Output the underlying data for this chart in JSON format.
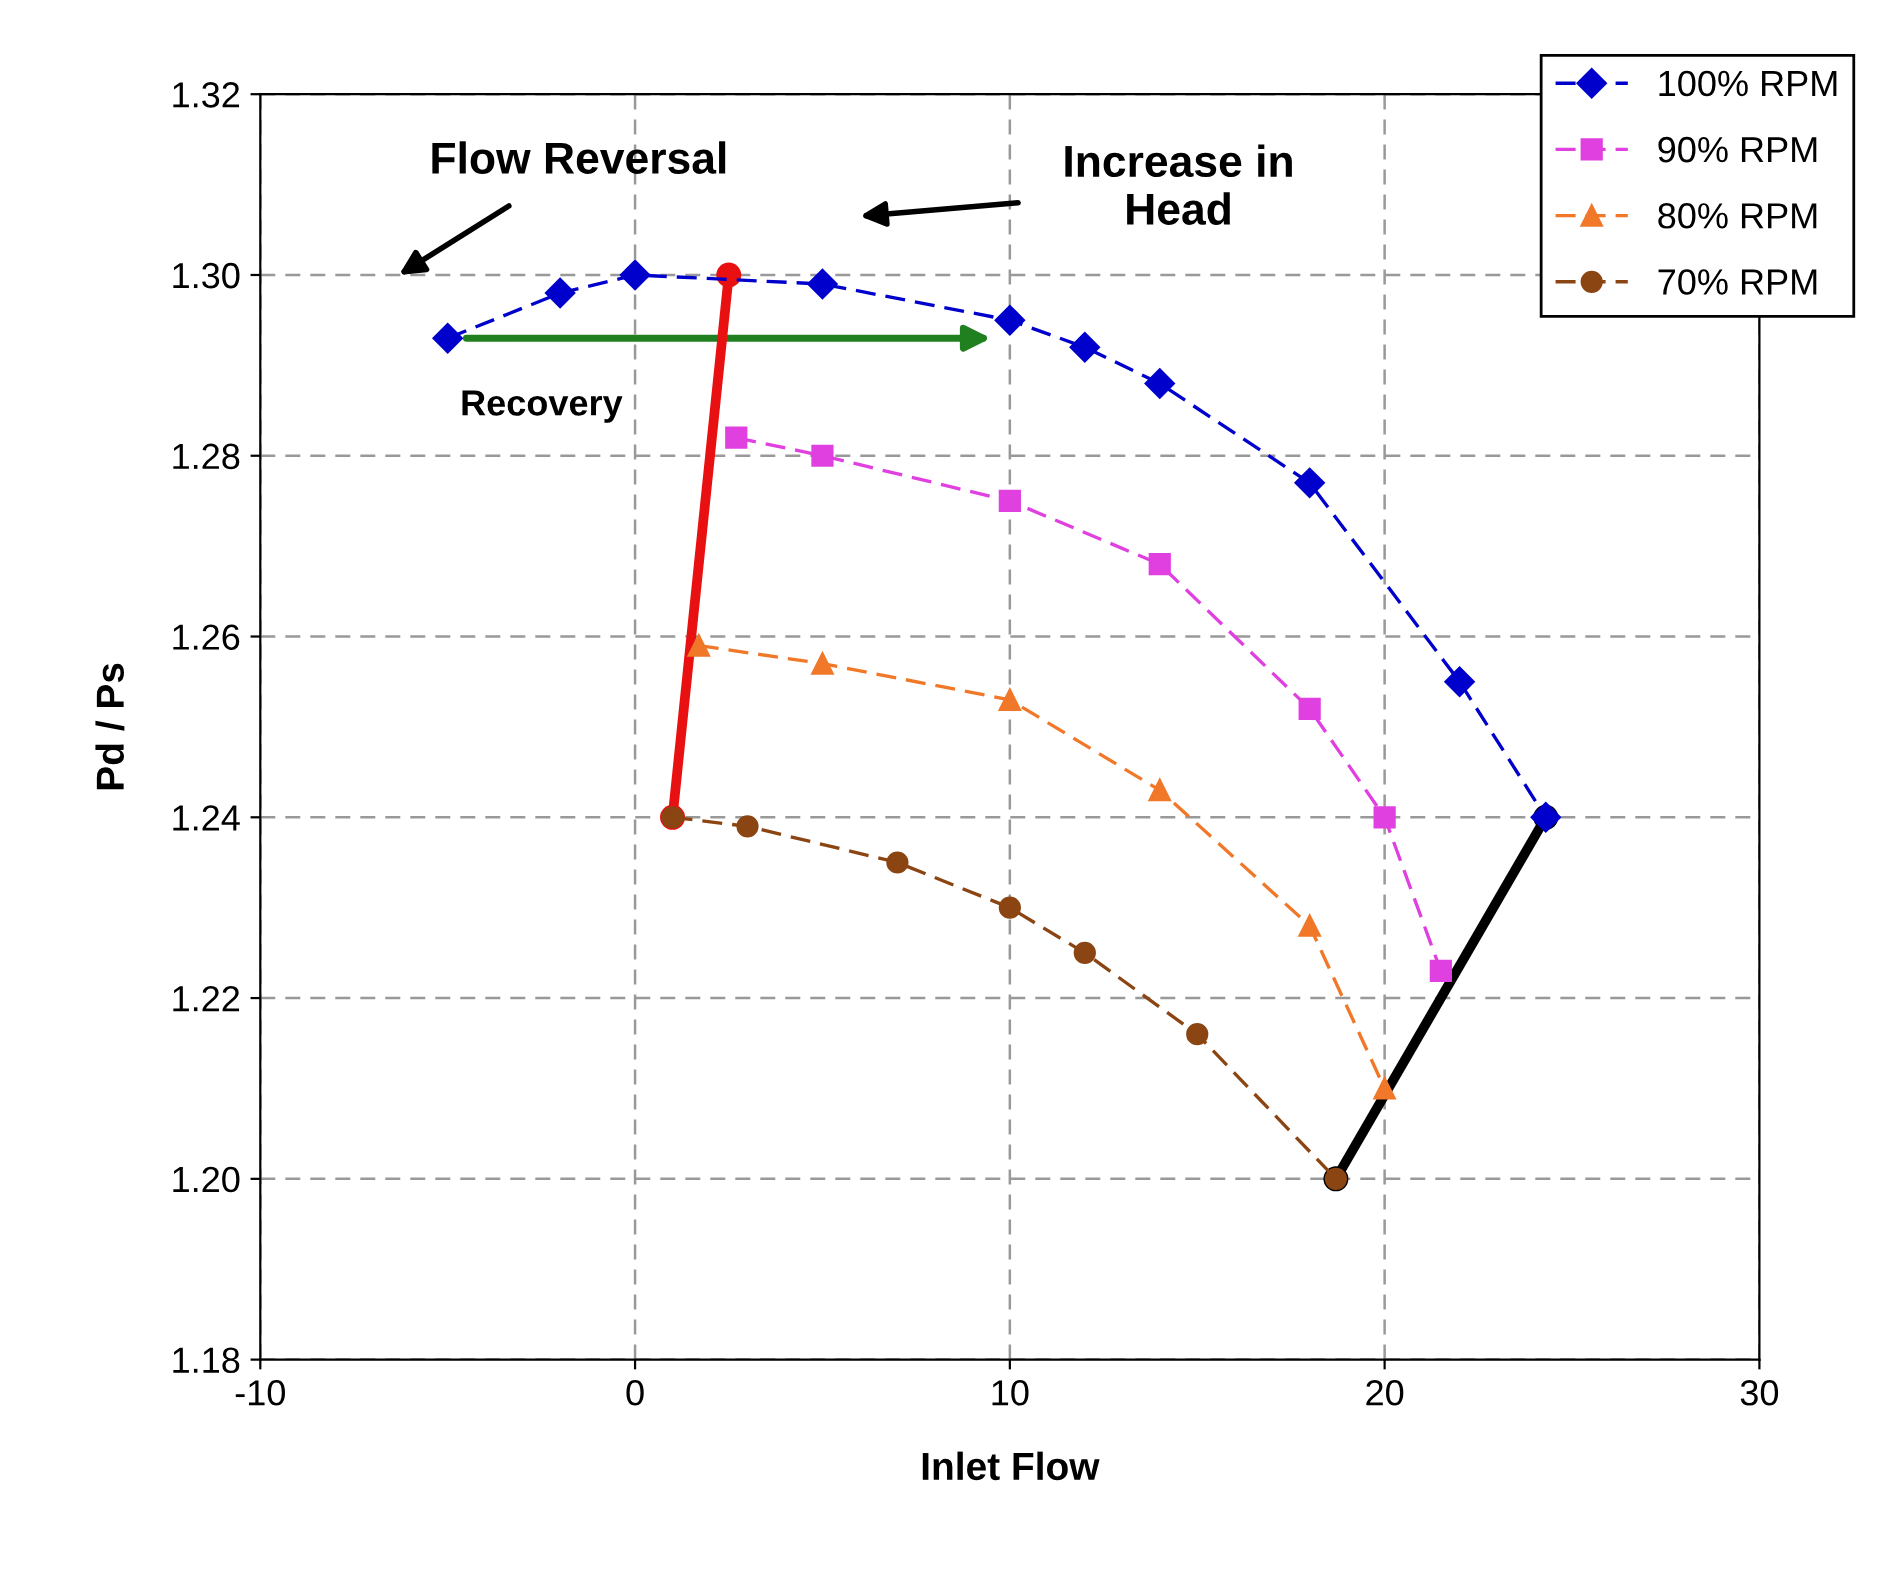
{
  "chart_data": {
    "type": "line",
    "xlabel": "Inlet Flow",
    "ylabel": "Pd / Ps",
    "xlim": [
      -10,
      30
    ],
    "ylim": [
      1.18,
      1.32
    ],
    "xticks": [
      -10,
      0,
      10,
      20,
      30
    ],
    "yticks": [
      {
        "value": 1.18,
        "label": "1.18"
      },
      {
        "value": 1.2,
        "label": "1.20"
      },
      {
        "value": 1.22,
        "label": "1.22"
      },
      {
        "value": 1.24,
        "label": "1.24"
      },
      {
        "value": 1.26,
        "label": "1.26"
      },
      {
        "value": 1.28,
        "label": "1.28"
      },
      {
        "value": 1.3,
        "label": "1.30"
      },
      {
        "value": 1.32,
        "label": "1.32"
      }
    ],
    "grid": true,
    "legend": "top right",
    "series": [
      {
        "name": "100% RPM",
        "color": "#0000cc",
        "marker": "diamond",
        "line_style": "dashed",
        "x": [
          -5,
          -2,
          0,
          5,
          10,
          12,
          14,
          18,
          22,
          24.3
        ],
        "values": [
          1.293,
          1.298,
          1.3,
          1.299,
          1.295,
          1.292,
          1.288,
          1.277,
          1.255,
          1.24
        ]
      },
      {
        "name": "90% RPM",
        "color": "#e040e0",
        "marker": "square",
        "line_style": "dashed",
        "x": [
          2.7,
          5,
          10,
          14,
          18,
          20,
          21.5
        ],
        "values": [
          1.282,
          1.28,
          1.275,
          1.268,
          1.252,
          1.24,
          1.223
        ]
      },
      {
        "name": "80% RPM",
        "color": "#f07828",
        "marker": "triangle",
        "line_style": "dashed",
        "x": [
          1.7,
          5,
          10,
          14,
          18,
          20
        ],
        "values": [
          1.259,
          1.257,
          1.253,
          1.243,
          1.228,
          1.21
        ]
      },
      {
        "name": "70% RPM",
        "color": "#8b4513",
        "marker": "circle",
        "line_style": "dashed",
        "x": [
          1,
          3,
          7,
          10,
          12,
          15,
          18.7
        ],
        "values": [
          1.24,
          1.239,
          1.235,
          1.23,
          1.225,
          1.216,
          1.2
        ]
      },
      {
        "color": "#e81010",
        "marker": "circle",
        "line_style": "solid",
        "x": [
          1,
          2.5
        ],
        "values": [
          1.24,
          1.3
        ]
      },
      {
        "color": "#000000",
        "marker": "circle",
        "line_style": "solid",
        "x": [
          18.7,
          24.3
        ],
        "values": [
          1.2,
          1.24
        ]
      }
    ],
    "annotations": [
      "Flow Reversal",
      "Increase in\nHead",
      "Recovery"
    ]
  }
}
